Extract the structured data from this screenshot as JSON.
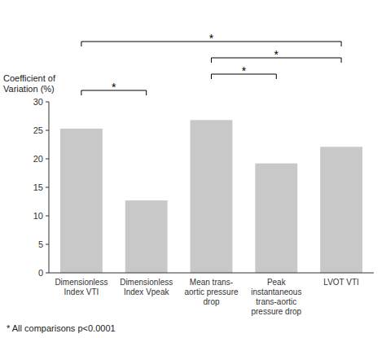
{
  "chart_data": {
    "type": "bar",
    "categories": [
      "Dimensionless\nIndex VTI",
      "Dimensionless\nIndex Vpeak",
      "Mean trans-\naortic pressure\ndrop",
      "Peak\ninstantaneous\ntrans-aortic\npressure drop",
      "LVOT VTI"
    ],
    "values": [
      25.3,
      12.7,
      26.8,
      19.2,
      22.1
    ],
    "color": "#c8c8c8",
    "ylabel": "Coefficient of\nVariation (%)",
    "ylim": [
      0,
      30
    ],
    "yticks": [
      0,
      5,
      10,
      15,
      20,
      25,
      30
    ],
    "grid": false,
    "annotations": [
      {
        "text": "*",
        "from": "Dimensionless\nIndex VTI",
        "to": "Dimensionless\nIndex Vpeak"
      },
      {
        "text": "*",
        "from": "Mean trans-\naortic pressure\ndrop",
        "to": "Peak\ninstantaneous\ntrans-aortic\npressure drop"
      },
      {
        "text": "*",
        "from": "Mean trans-\naortic pressure\ndrop",
        "to": "LVOT VTI"
      },
      {
        "text": "*",
        "from": "Dimensionless\nIndex VTI",
        "to": "LVOT VTI"
      },
      {
        "text": "* All comparisons p<0.0001"
      }
    ]
  }
}
